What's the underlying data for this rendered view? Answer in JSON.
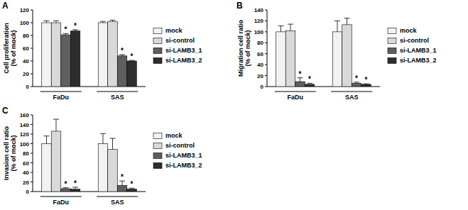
{
  "chart_data": [
    {
      "type": "bar",
      "title": "A",
      "y_label": [
        "Cell proliferation",
        "(% of mock)"
      ],
      "categories": [
        "FaDu",
        "SAS"
      ],
      "series": [
        {
          "name": "mock",
          "color": "#f2f2f2",
          "values": [
            100,
            100
          ],
          "errors": [
            3,
            2
          ]
        },
        {
          "name": "si-control",
          "color": "#d9d9d9",
          "values": [
            100,
            102
          ],
          "errors": [
            3,
            2
          ]
        },
        {
          "name": "si-LAMB3_1",
          "color": "#5f5f5f",
          "values": [
            81,
            48
          ],
          "errors": [
            2,
            2
          ],
          "annotations": [
            "*",
            "*"
          ]
        },
        {
          "name": "si-LAMB3_2",
          "color": "#2e2e2e",
          "values": [
            87,
            40
          ],
          "errors": [
            2,
            1
          ],
          "annotations": [
            "*",
            "*"
          ]
        }
      ],
      "ylim": [
        0,
        120
      ],
      "yticks": [
        0,
        20,
        40,
        60,
        80,
        100,
        120
      ],
      "grid": false,
      "legend": "right"
    },
    {
      "type": "bar",
      "title": "B",
      "y_label": [
        "Migration cell ratio",
        "(% of mock)"
      ],
      "categories": [
        "FaDu",
        "SAS"
      ],
      "series": [
        {
          "name": "mock",
          "color": "#f2f2f2",
          "values": [
            100,
            100
          ],
          "errors": [
            11,
            20
          ]
        },
        {
          "name": "si-control",
          "color": "#d9d9d9",
          "values": [
            102,
            113
          ],
          "errors": [
            12,
            12
          ]
        },
        {
          "name": "si-LAMB3_1",
          "color": "#5f5f5f",
          "values": [
            9,
            6
          ],
          "errors": [
            7,
            2
          ],
          "annotations": [
            "*",
            "*"
          ]
        },
        {
          "name": "si-LAMB3_2",
          "color": "#2e2e2e",
          "values": [
            4,
            4
          ],
          "errors": [
            2,
            1
          ],
          "annotations": [
            "*",
            "*"
          ]
        }
      ],
      "ylim": [
        0,
        140
      ],
      "yticks": [
        0,
        20,
        40,
        60,
        80,
        100,
        120,
        140
      ],
      "grid": false,
      "legend": "right"
    },
    {
      "type": "bar",
      "title": "C",
      "y_label": [
        "Invasion cell ratio",
        "(% of mock)"
      ],
      "categories": [
        "FaDu",
        "SAS"
      ],
      "series": [
        {
          "name": "mock",
          "color": "#f2f2f2",
          "values": [
            100,
            100
          ],
          "errors": [
            16,
            21
          ]
        },
        {
          "name": "si-control",
          "color": "#d9d9d9",
          "values": [
            126,
            88
          ],
          "errors": [
            25,
            23
          ]
        },
        {
          "name": "si-LAMB3_1",
          "color": "#5f5f5f",
          "values": [
            6,
            13
          ],
          "errors": [
            2,
            9
          ],
          "annotations": [
            "*",
            "*"
          ]
        },
        {
          "name": "si-LAMB3_2",
          "color": "#2e2e2e",
          "values": [
            5,
            5
          ],
          "errors": [
            4,
            2
          ],
          "annotations": [
            "*",
            "*"
          ]
        }
      ],
      "ylim": [
        0,
        160
      ],
      "yticks": [
        0,
        20,
        40,
        60,
        80,
        100,
        120,
        140,
        160
      ],
      "grid": false,
      "legend": "right"
    }
  ]
}
